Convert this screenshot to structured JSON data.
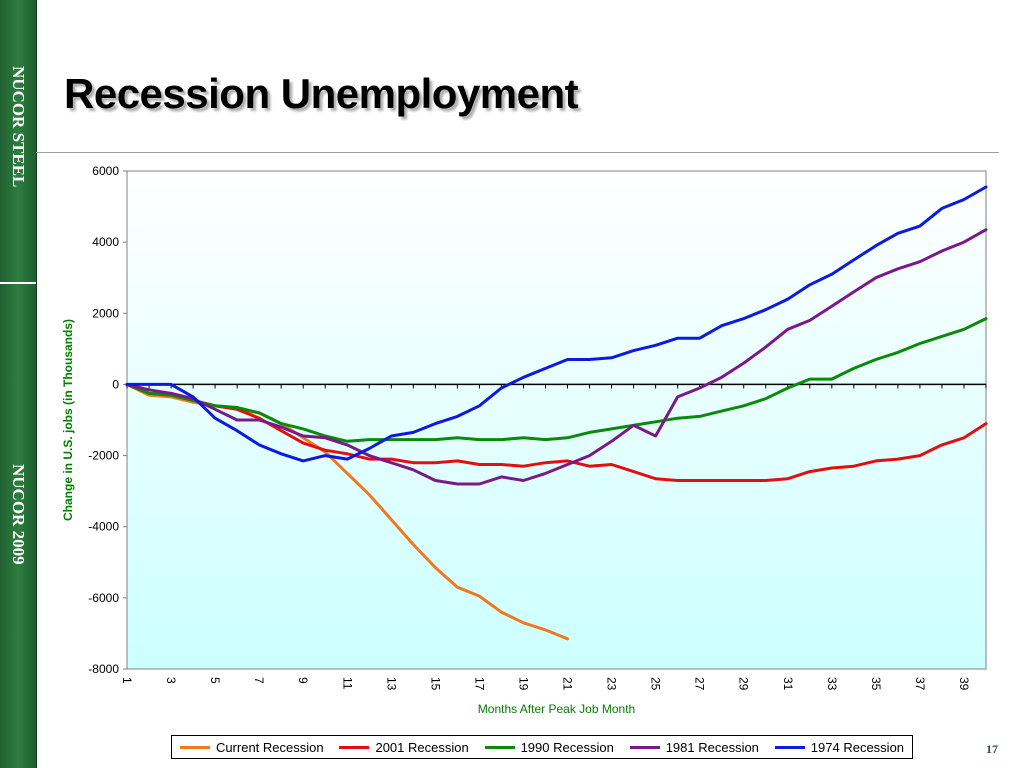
{
  "sidebar": {
    "top_label": "NUCOR STEEL",
    "bottom_label": "NUCOR 2009"
  },
  "slide": {
    "title": "Recession Unemployment",
    "page_number": "17"
  },
  "colors": {
    "sidebar_green": "#2e7d40",
    "plot_background_top": "#ffffff",
    "plot_background_bottom": "#ccffff",
    "axis_text_green": "#008000"
  },
  "chart_data": {
    "type": "line",
    "xlabel": "Months After Peak Job Month",
    "ylabel": "Change in U.S. jobs (in Thousands)",
    "ylim": [
      -8000,
      6000
    ],
    "yticks": [
      6000,
      4000,
      2000,
      0,
      -2000,
      -4000,
      -6000,
      -8000
    ],
    "xlim": [
      1,
      40
    ],
    "xticks": [
      1,
      3,
      5,
      7,
      9,
      11,
      13,
      15,
      17,
      19,
      21,
      23,
      25,
      27,
      29,
      31,
      33,
      35,
      37,
      39
    ],
    "grid": false,
    "legend_position": "bottom",
    "series": [
      {
        "name": "Current Recession",
        "color": "#f07820",
        "x": [
          1,
          2,
          3,
          4,
          5,
          6,
          7,
          8,
          9,
          10,
          11,
          12,
          13,
          14,
          15,
          16,
          17,
          18,
          19,
          20,
          21
        ],
        "values": [
          0,
          -300,
          -350,
          -500,
          -600,
          -700,
          -800,
          -1100,
          -1500,
          -1900,
          -2500,
          -3100,
          -3800,
          -4500,
          -5150,
          -5700,
          -5950,
          -6400,
          -6700,
          -6900,
          -7150
        ]
      },
      {
        "name": "2001 Recession",
        "color": "#e01010",
        "x": [
          1,
          2,
          3,
          4,
          5,
          6,
          7,
          8,
          9,
          10,
          11,
          12,
          13,
          14,
          15,
          16,
          17,
          18,
          19,
          20,
          21,
          22,
          23,
          24,
          25,
          26,
          27,
          28,
          29,
          30,
          31,
          32,
          33,
          34,
          35,
          36,
          37,
          38,
          39,
          40
        ],
        "values": [
          0,
          -250,
          -300,
          -450,
          -600,
          -700,
          -950,
          -1300,
          -1650,
          -1850,
          -1950,
          -2100,
          -2100,
          -2200,
          -2200,
          -2150,
          -2250,
          -2250,
          -2300,
          -2200,
          -2150,
          -2300,
          -2250,
          -2450,
          -2650,
          -2700,
          -2700,
          -2700,
          -2700,
          -2700,
          -2650,
          -2450,
          -2350,
          -2300,
          -2150,
          -2100,
          -2000,
          -1700,
          -1500,
          -1100
        ]
      },
      {
        "name": "1990 Recession",
        "color": "#0a8a0a",
        "x": [
          1,
          2,
          3,
          4,
          5,
          6,
          7,
          8,
          9,
          10,
          11,
          12,
          13,
          14,
          15,
          16,
          17,
          18,
          19,
          20,
          21,
          22,
          23,
          24,
          25,
          26,
          27,
          28,
          29,
          30,
          31,
          32,
          33,
          34,
          35,
          36,
          37,
          38,
          39,
          40
        ],
        "values": [
          0,
          -250,
          -300,
          -450,
          -600,
          -650,
          -800,
          -1100,
          -1250,
          -1450,
          -1600,
          -1550,
          -1550,
          -1550,
          -1550,
          -1500,
          -1550,
          -1550,
          -1500,
          -1550,
          -1500,
          -1350,
          -1250,
          -1150,
          -1050,
          -950,
          -900,
          -750,
          -600,
          -400,
          -100,
          150,
          150,
          450,
          700,
          900,
          1150,
          1350,
          1550,
          1850
        ]
      },
      {
        "name": "1981 Recession",
        "color": "#7a1a8a",
        "x": [
          1,
          2,
          3,
          4,
          5,
          6,
          7,
          8,
          9,
          10,
          11,
          12,
          13,
          14,
          15,
          16,
          17,
          18,
          19,
          20,
          21,
          22,
          23,
          24,
          25,
          26,
          27,
          28,
          29,
          30,
          31,
          32,
          33,
          34,
          35,
          36,
          37,
          38,
          39,
          40
        ],
        "values": [
          0,
          -150,
          -250,
          -400,
          -700,
          -1000,
          -1000,
          -1200,
          -1450,
          -1500,
          -1700,
          -2000,
          -2200,
          -2400,
          -2700,
          -2800,
          -2800,
          -2600,
          -2700,
          -2500,
          -2250,
          -2000,
          -1600,
          -1150,
          -1450,
          -350,
          -100,
          200,
          600,
          1050,
          1550,
          1800,
          2200,
          2600,
          3000,
          3250,
          3450,
          3750,
          4000,
          4350
        ]
      },
      {
        "name": "1974 Recession",
        "color": "#0a1ae0",
        "x": [
          1,
          2,
          3,
          4,
          5,
          6,
          7,
          8,
          9,
          10,
          11,
          12,
          13,
          14,
          15,
          16,
          17,
          18,
          19,
          20,
          21,
          22,
          23,
          24,
          25,
          26,
          27,
          28,
          29,
          30,
          31,
          32,
          33,
          34,
          35,
          36,
          37,
          38,
          39,
          40
        ],
        "values": [
          0,
          0,
          0,
          -350,
          -950,
          -1300,
          -1700,
          -1950,
          -2150,
          -2000,
          -2100,
          -1800,
          -1450,
          -1350,
          -1100,
          -900,
          -600,
          -100,
          200,
          450,
          700,
          700,
          750,
          950,
          1100,
          1300,
          1300,
          1650,
          1850,
          2100,
          2400,
          2800,
          3100,
          3500,
          3900,
          4250,
          4450,
          4950,
          5200,
          5550
        ]
      }
    ]
  }
}
